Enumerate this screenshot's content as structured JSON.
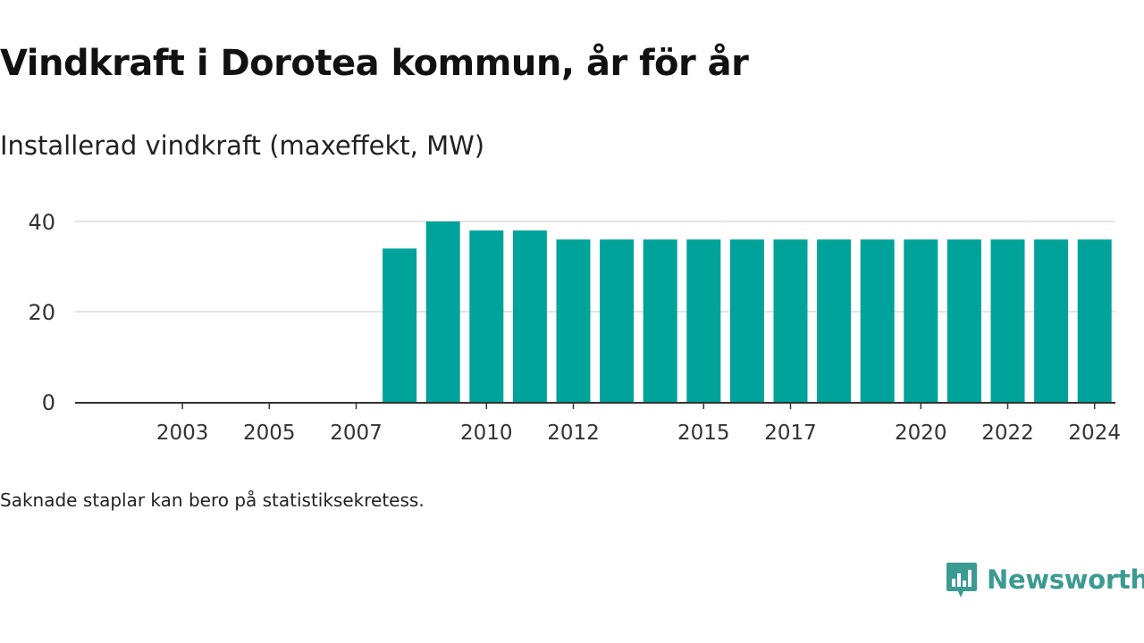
{
  "header": {
    "title": "Vindkraft i Dorotea kommun, år för år",
    "subtitle": "Installerad vindkraft (maxeffekt, MW)"
  },
  "footer": {
    "note": "Saknade staplar kan bero på statistiksekretess.",
    "brand_name": "Newsworthy",
    "brand_icon": "newsworthy-logo-icon"
  },
  "colors": {
    "bar": "#00a39a",
    "brand": "#3b9b92",
    "grid": "#dcdcdc",
    "axis": "#333333",
    "text": "#333333"
  },
  "chart_data": {
    "type": "bar",
    "title": "Vindkraft i Dorotea kommun, år för år",
    "subtitle": "Installerad vindkraft (maxeffekt, MW)",
    "categories": [
      2002,
      2003,
      2004,
      2005,
      2006,
      2007,
      2008,
      2009,
      2010,
      2011,
      2012,
      2013,
      2014,
      2015,
      2016,
      2017,
      2018,
      2019,
      2020,
      2021,
      2022,
      2023,
      2024
    ],
    "values": [
      null,
      null,
      null,
      null,
      null,
      null,
      34,
      40,
      38,
      38,
      36,
      36,
      36,
      36,
      36,
      36,
      36,
      36,
      36,
      36,
      36,
      36,
      36
    ],
    "x_tick_labels": [
      "2003",
      "2005",
      "2007",
      "2010",
      "2012",
      "2015",
      "2017",
      "2020",
      "2022",
      "2024"
    ],
    "y_ticks": [
      0,
      20,
      40
    ],
    "ylim": [
      0,
      40
    ],
    "grid": true,
    "legend": "none",
    "xlabel": "",
    "ylabel": ""
  }
}
